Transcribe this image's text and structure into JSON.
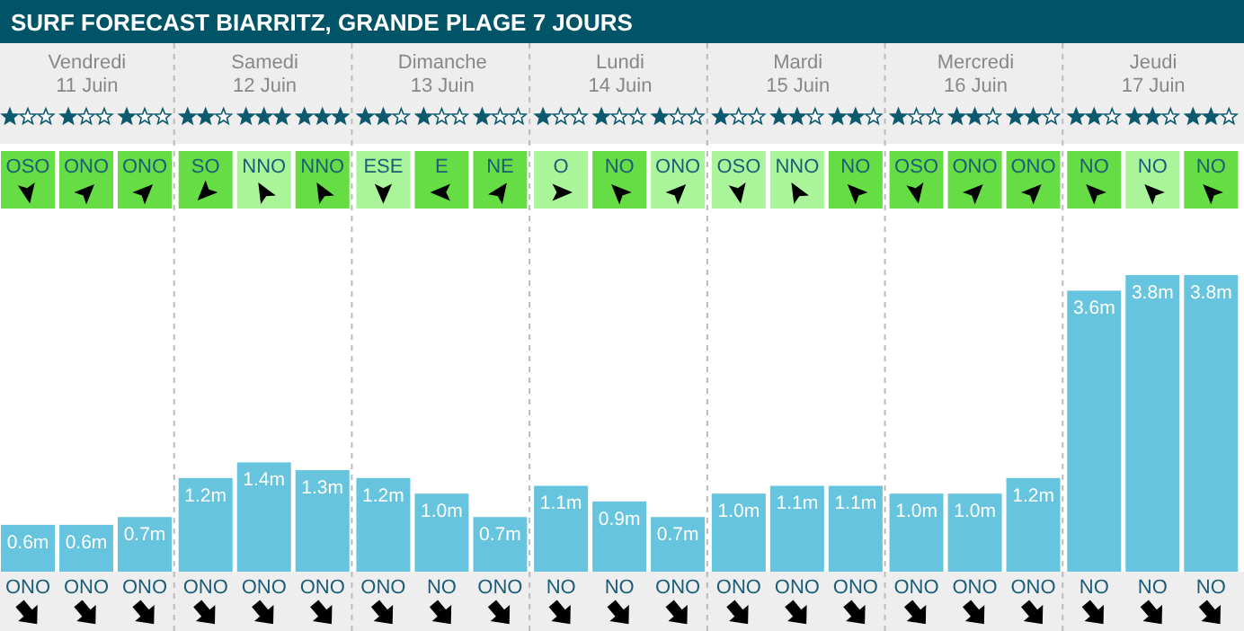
{
  "chart_data": {
    "type": "bar",
    "title": "SURF FORECAST BIARRITZ, GRANDE PLAGE 7 JOURS",
    "categories": [
      "ONO",
      "ONO",
      "ONO",
      "ONO",
      "ONO",
      "ONO",
      "ONO",
      "NO",
      "ONO",
      "NO",
      "NO",
      "ONO",
      "ONO",
      "ONO",
      "ONO",
      "ONO",
      "ONO",
      "ONO",
      "NO",
      "NO",
      "NO"
    ],
    "values": [
      0.6,
      0.6,
      0.7,
      1.2,
      1.4,
      1.3,
      1.2,
      1.0,
      0.7,
      1.1,
      0.9,
      0.7,
      1.0,
      1.1,
      1.1,
      1.0,
      1.0,
      1.2,
      3.6,
      3.8,
      3.8
    ],
    "value_labels": [
      "0.6m",
      "0.6m",
      "0.7m",
      "1.2m",
      "1.4m",
      "1.3m",
      "1.2m",
      "1.0m",
      "0.7m",
      "1.1m",
      "0.9m",
      "0.7m",
      "1.0m",
      "1.1m",
      "1.1m",
      "1.0m",
      "1.0m",
      "1.2m",
      "3.6m",
      "3.8m",
      "3.8m"
    ],
    "color": "#66c4de",
    "annotations": [
      "Vendredi\n11 Juin",
      "Samedi\n12 Juin",
      "Dimanche\n13 Juin",
      "Lundi\n14 Juin",
      "Mardi\n15 Juin",
      "Mercredi\n16 Juin",
      "Jeudi\n17 Juin",
      "OSO",
      "ONO",
      "ONO",
      "SO",
      "NNO",
      "NNO",
      "ESE",
      "E",
      "NE",
      "O",
      "NO",
      "ONO",
      "OSO",
      "NNO",
      "NO",
      "OSO",
      "ONO",
      "ONO",
      "NO",
      "NO",
      "NO"
    ]
  }
}
